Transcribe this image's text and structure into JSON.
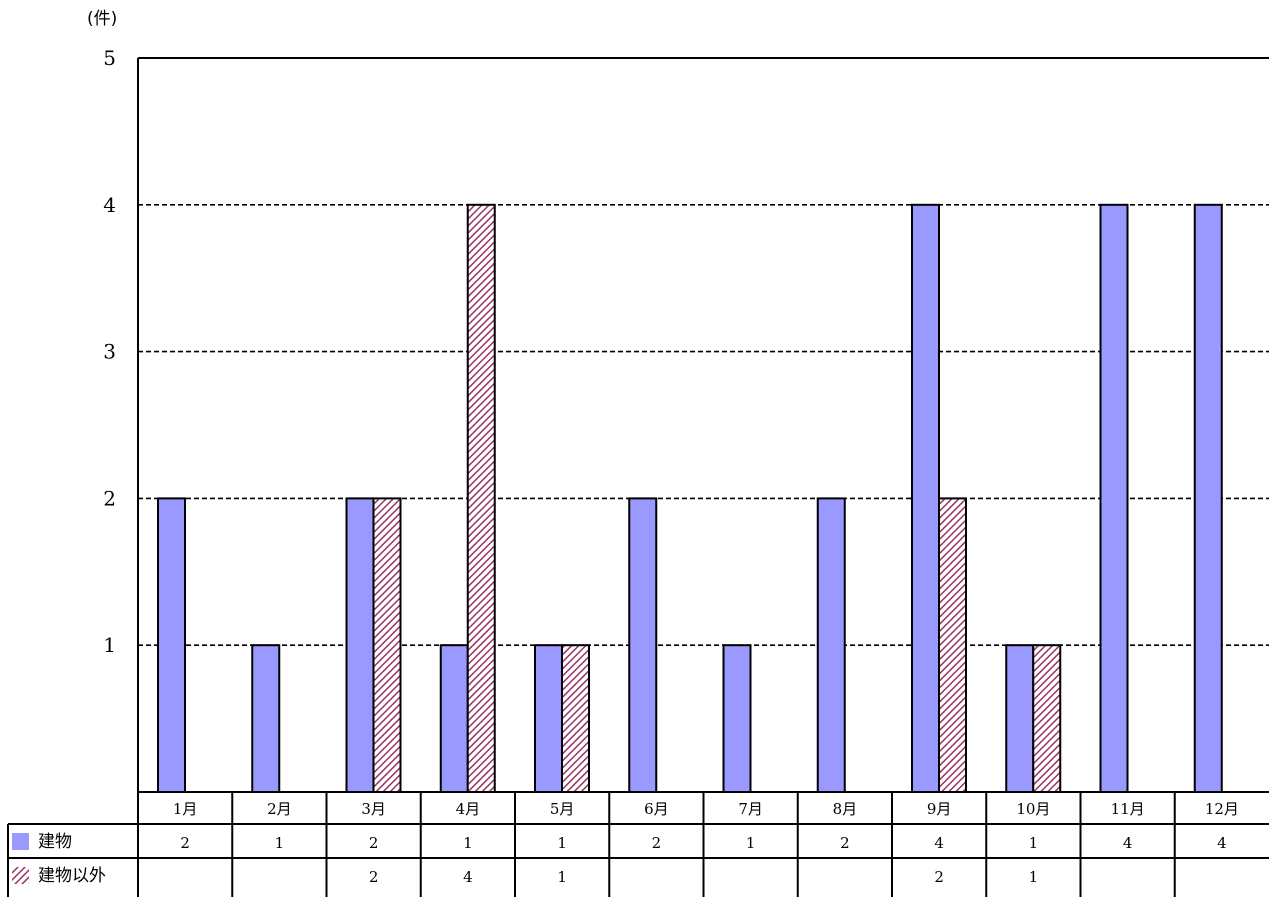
{
  "chart_data": {
    "type": "bar",
    "y_unit": "(件)",
    "ylim": [
      0,
      5
    ],
    "yticks": [
      1,
      2,
      3,
      4,
      5
    ],
    "grid": true,
    "categories": [
      "1月",
      "2月",
      "3月",
      "4月",
      "5月",
      "6月",
      "7月",
      "8月",
      "9月",
      "10月",
      "11月",
      "12月"
    ],
    "series": [
      {
        "name": "建物",
        "color": "#9999ff",
        "pattern": "solid",
        "values": [
          2,
          1,
          2,
          1,
          1,
          2,
          1,
          2,
          4,
          1,
          4,
          4
        ]
      },
      {
        "name": "建物以外",
        "color": "#993366",
        "pattern": "diagonal-hatch",
        "values": [
          null,
          null,
          2,
          4,
          1,
          null,
          null,
          null,
          2,
          1,
          null,
          null
        ]
      }
    ]
  }
}
